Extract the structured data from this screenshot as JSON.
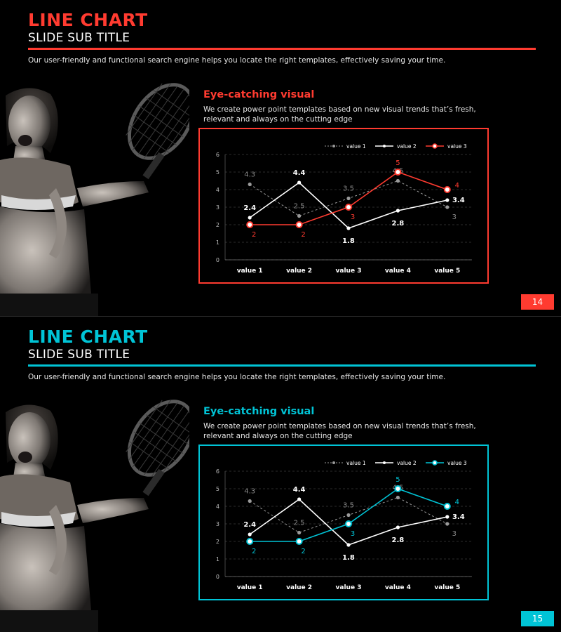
{
  "slides": [
    {
      "accent": "#ff3b30",
      "title": "LINE CHART",
      "subtitle": "SLIDE SUB TITLE",
      "intro": "Our user-friendly and functional search engine helps you locate the right templates, effectively saving your time.",
      "section_heading": "Eye-catching visual",
      "section_text": "We create power point templates based on new visual trends that’s fresh, relevant and always on the cutting edge",
      "page_number": "14"
    },
    {
      "accent": "#00c4d6",
      "title": "LINE CHART",
      "subtitle": "SLIDE SUB TITLE",
      "intro": "Our user-friendly and functional search engine helps you locate the right templates, effectively saving your time.",
      "section_heading": "Eye-catching visual",
      "section_text": "We create power point templates based on new visual trends that’s fresh, relevant and always on the cutting edge",
      "page_number": "15"
    }
  ],
  "chart_data": [
    {
      "type": "line",
      "categories": [
        "value 1",
        "value 2",
        "value 3",
        "value 4",
        "value 5"
      ],
      "ylim": [
        0,
        6
      ],
      "yticks": [
        "0",
        "1",
        "2",
        "3",
        "4",
        "5",
        "6"
      ],
      "grid": true,
      "legend": "top-right",
      "series": [
        {
          "name": "value 1",
          "values": [
            4.3,
            2.5,
            3.5,
            4.5,
            3
          ],
          "labels": [
            "4.3",
            "2.5",
            "3.5",
            "4.5",
            "3"
          ],
          "color": "#9a9a9a",
          "style": "dashed"
        },
        {
          "name": "value 2",
          "values": [
            2.4,
            4.4,
            1.8,
            2.8,
            3.4
          ],
          "labels": [
            "2.4",
            "4.4",
            "1.8",
            "2.8",
            "3.4"
          ],
          "color": "#ffffff",
          "style": "solid"
        },
        {
          "name": "value 3",
          "values": [
            2,
            2,
            3,
            5,
            4
          ],
          "labels": [
            "2",
            "2",
            "3",
            "5",
            "4"
          ],
          "color": "#ff3b30",
          "style": "solid"
        }
      ]
    },
    {
      "type": "line",
      "categories": [
        "value 1",
        "value 2",
        "value 3",
        "value 4",
        "value 5"
      ],
      "ylim": [
        0,
        6
      ],
      "yticks": [
        "0",
        "1",
        "2",
        "3",
        "4",
        "5",
        "6"
      ],
      "grid": true,
      "legend": "top-right",
      "series": [
        {
          "name": "value 1",
          "values": [
            4.3,
            2.5,
            3.5,
            4.5,
            3
          ],
          "labels": [
            "4.3",
            "2.5",
            "3.5",
            "4.5",
            "3"
          ],
          "color": "#9a9a9a",
          "style": "dashed"
        },
        {
          "name": "value 2",
          "values": [
            2.4,
            4.4,
            1.8,
            2.8,
            3.4
          ],
          "labels": [
            "2.4",
            "4.4",
            "1.8",
            "2.8",
            "3.4"
          ],
          "color": "#ffffff",
          "style": "solid"
        },
        {
          "name": "value 3",
          "values": [
            2,
            2,
            3,
            5,
            4
          ],
          "labels": [
            "2",
            "2",
            "3",
            "5",
            "4"
          ],
          "color": "#00c4d6",
          "style": "solid"
        }
      ]
    }
  ]
}
